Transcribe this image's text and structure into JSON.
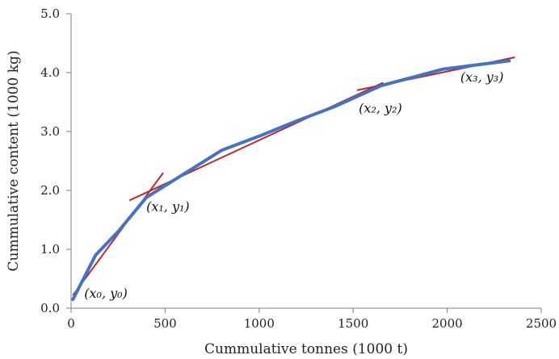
{
  "chart_data": {
    "type": "line",
    "title": "",
    "xlabel": "Cummulative tonnes (1000 t)",
    "ylabel": "Cummulative content (1000 kg)",
    "xlim": [
      0,
      2500
    ],
    "ylim": [
      0,
      5
    ],
    "x_ticks": [
      0,
      500,
      1000,
      1500,
      2000,
      2500
    ],
    "x_tick_labels": [
      "0",
      "500",
      "1000",
      "1500",
      "2000",
      "2500"
    ],
    "y_ticks": [
      0,
      1,
      2,
      3,
      4,
      5
    ],
    "y_tick_labels": [
      "0.0",
      "1.0",
      "2.0",
      "3.0",
      "4.0",
      "5.0"
    ],
    "grid": false,
    "legend": "none",
    "series": [
      {
        "color": "#4472C4",
        "points": [
          [
            10,
            0.15
          ],
          [
            130,
            0.9
          ],
          [
            250,
            1.3
          ],
          [
            400,
            1.88
          ],
          [
            600,
            2.28
          ],
          [
            800,
            2.68
          ],
          [
            1000,
            2.92
          ],
          [
            1200,
            3.18
          ],
          [
            1400,
            3.42
          ],
          [
            1650,
            3.78
          ],
          [
            1980,
            4.06
          ],
          [
            2330,
            4.2
          ]
        ]
      }
    ],
    "segments": [
      {
        "color": "#C0272D",
        "from": [
          10,
          0.22
        ],
        "to": [
          490,
          2.3
        ]
      },
      {
        "color": "#C0272D",
        "from": [
          310,
          1.83
        ],
        "to": [
          1660,
          3.83
        ]
      },
      {
        "color": "#C0272D",
        "from": [
          1520,
          3.7
        ],
        "to": [
          2360,
          4.26
        ]
      }
    ],
    "annotations": [
      {
        "text": "(x₀, y₀)",
        "x": 70,
        "y": 0.18
      },
      {
        "text": "(x₁, y₁)",
        "x": 400,
        "y": 1.65
      },
      {
        "text": "(x₂, y₂)",
        "x": 1530,
        "y": 3.32
      },
      {
        "text": "(x₃, y₃)",
        "x": 2070,
        "y": 3.85
      }
    ]
  }
}
